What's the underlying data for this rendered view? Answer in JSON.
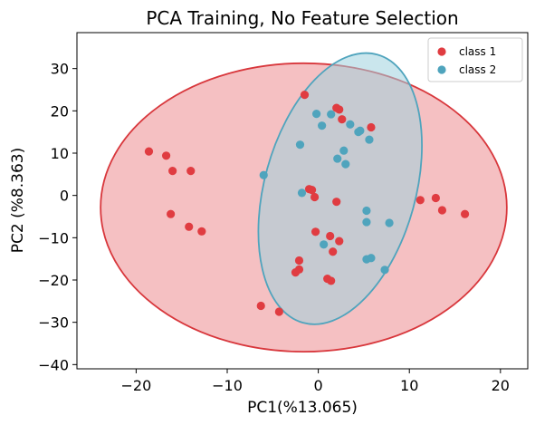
{
  "chart_data": {
    "type": "scatter",
    "title": "PCA Training, No Feature Selection",
    "xlabel": "PC1(%13.065)",
    "ylabel": "PC2 (%8.363)",
    "xlim": [
      -26.5,
      23
    ],
    "ylim": [
      -41,
      38.5
    ],
    "xticks": [
      -20,
      -10,
      0,
      10,
      20
    ],
    "yticks": [
      -40,
      -30,
      -20,
      -10,
      0,
      10,
      20,
      30
    ],
    "xtick_labels": [
      "−20",
      "−10",
      "0",
      "10",
      "20"
    ],
    "ytick_labels": [
      "−40",
      "−30",
      "−20",
      "−10",
      "0",
      "10",
      "20",
      "30"
    ],
    "grid": false,
    "legend_position": "top-right",
    "series": [
      {
        "name": "class 1",
        "color": "#e03c41",
        "points": [
          [
            -18.6,
            10.4
          ],
          [
            -16.7,
            9.4
          ],
          [
            -16.0,
            5.8
          ],
          [
            -14.0,
            5.8
          ],
          [
            -16.2,
            -4.4
          ],
          [
            -14.2,
            -7.4
          ],
          [
            -12.8,
            -8.5
          ],
          [
            -6.3,
            -26.1
          ],
          [
            -4.3,
            -27.5
          ],
          [
            -1.5,
            23.8
          ],
          [
            2.0,
            20.7
          ],
          [
            2.3,
            20.3
          ],
          [
            2.6,
            18.0
          ],
          [
            5.8,
            16.1
          ],
          [
            -1.0,
            1.5
          ],
          [
            -0.7,
            1.3
          ],
          [
            -0.4,
            -0.4
          ],
          [
            2.0,
            -1.5
          ],
          [
            -0.3,
            -8.6
          ],
          [
            1.3,
            -9.6
          ],
          [
            2.3,
            -10.8
          ],
          [
            1.6,
            -13.3
          ],
          [
            -2.1,
            -15.4
          ],
          [
            -2.1,
            -17.5
          ],
          [
            -2.5,
            -18.2
          ],
          [
            1.0,
            -19.7
          ],
          [
            1.4,
            -20.2
          ],
          [
            11.2,
            -1.1
          ],
          [
            12.9,
            -0.6
          ],
          [
            13.6,
            -3.5
          ],
          [
            16.1,
            -4.4
          ]
        ]
      },
      {
        "name": "class 2",
        "color": "#4fa4bd",
        "points": [
          [
            -0.2,
            19.3
          ],
          [
            1.4,
            19.2
          ],
          [
            0.4,
            16.5
          ],
          [
            3.5,
            16.8
          ],
          [
            4.4,
            15.0
          ],
          [
            4.6,
            15.3
          ],
          [
            5.6,
            13.2
          ],
          [
            -2.0,
            12.0
          ],
          [
            2.8,
            10.6
          ],
          [
            2.1,
            8.7
          ],
          [
            3.0,
            7.4
          ],
          [
            -6.0,
            4.8
          ],
          [
            -1.8,
            0.6
          ],
          [
            5.3,
            -3.6
          ],
          [
            5.3,
            -6.3
          ],
          [
            7.8,
            -6.5
          ],
          [
            0.6,
            -11.6
          ],
          [
            5.8,
            -14.8
          ],
          [
            5.3,
            -15.1
          ],
          [
            7.3,
            -17.6
          ]
        ]
      }
    ],
    "ellipses": [
      {
        "series": "class 1",
        "cx": -1.6,
        "cy": -2.85,
        "rx": 22.3,
        "ry": 34.1,
        "angle_deg": 0,
        "fill": "#e03c41",
        "fill_opacity": 0.32,
        "stroke": "#d8373c"
      },
      {
        "series": "class 2",
        "cx": 2.4,
        "cy": 1.6,
        "rx": 8.3,
        "ry": 32.9,
        "angle_deg": 15.5,
        "fill": "#9ed2df",
        "fill_opacity": 0.55,
        "stroke": "#4fa4bd"
      }
    ]
  }
}
